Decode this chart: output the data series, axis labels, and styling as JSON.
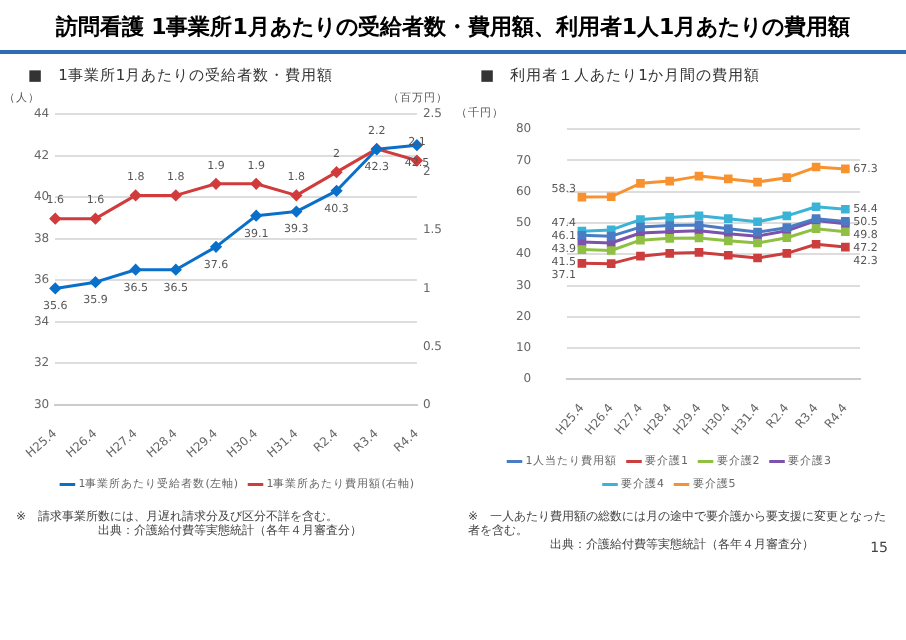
{
  "chart_data": [
    {
      "type": "line",
      "title": "訪問看護 1事業所1月あたりの受給者数・費用額、利用者1人1月あたりの費用額",
      "subtitle": "■　1事業所1月あたりの受給者数・費用額",
      "ylabel": "（人）",
      "y2label": "（百万円）",
      "categories": [
        "H25.4",
        "H26.4",
        "H27.4",
        "H28.4",
        "H29.4",
        "H30.4",
        "H31.4",
        "R2.4",
        "R3.4",
        "R4.4"
      ],
      "series": [
        {
          "name": "1事業所あたり受給者数(左軸)",
          "color": "#0a6fc9",
          "values": [
            35.6,
            35.9,
            36.5,
            36.5,
            37.6,
            39.1,
            39.3,
            40.3,
            42.3,
            42.5
          ]
        },
        {
          "name": "1事業所あたり費用額(右軸)",
          "color": "#d13b3b",
          "axis": "y2",
          "values": [
            1.6,
            1.6,
            1.8,
            1.8,
            1.9,
            1.9,
            1.8,
            2,
            2.2,
            2.1
          ]
        }
      ],
      "ylim": [
        30,
        44
      ],
      "yticks": [
        30,
        32,
        34,
        36,
        38,
        40,
        42,
        44
      ],
      "y2lim": [
        0,
        2.5
      ],
      "y2ticks": [
        0,
        0.5,
        1,
        1.5,
        2,
        2.5
      ],
      "grid": "y",
      "legend": "bottom",
      "marker": "diamond",
      "data_labels": true,
      "annotations": [
        "※　請求事業所数には、月遅れ請求分及び区分不詳を含む。",
        "出典：介護給付費等実態統計（各年４月審査分）"
      ]
    },
    {
      "type": "line",
      "title": "■　利用者１人あたり1か月間の費用額",
      "ylabel": "（千円）",
      "categories": [
        "H25.4",
        "H26.4",
        "H27.4",
        "H28.4",
        "H29.4",
        "H30.4",
        "H31.4",
        "R2.4",
        "R3.4",
        "R4.4"
      ],
      "series": [
        {
          "name": "1人当たり費用額",
          "color": "#4a7cc4",
          "values": [
            46.1,
            45.8,
            48.7,
            49.2,
            49.4,
            48.2,
            47.1,
            48.5,
            51.4,
            50.5
          ],
          "value_labels": [
            "46.1",
            null,
            null,
            null,
            null,
            null,
            null,
            null,
            null,
            "50.5"
          ]
        },
        {
          "name": "要介護1",
          "color": "#cc3d3d",
          "values": [
            37.1,
            37.0,
            39.4,
            40.3,
            40.6,
            39.7,
            38.8,
            40.3,
            43.2,
            42.3
          ],
          "value_labels": [
            "37.1",
            null,
            null,
            null,
            null,
            null,
            null,
            null,
            null,
            "42.3"
          ]
        },
        {
          "name": "要介護2",
          "color": "#8fc043",
          "values": [
            41.5,
            41.2,
            44.5,
            45.1,
            45.2,
            44.3,
            43.6,
            45.3,
            48.2,
            47.2
          ],
          "value_labels": [
            "41.5",
            null,
            null,
            null,
            null,
            null,
            null,
            null,
            null,
            "47.2"
          ]
        },
        {
          "name": "要介護3",
          "color": "#7d52ab",
          "values": [
            43.9,
            43.6,
            46.8,
            47.2,
            47.5,
            46.6,
            45.8,
            47.5,
            50.8,
            49.8
          ],
          "value_labels": [
            "43.9",
            null,
            null,
            null,
            null,
            null,
            null,
            null,
            null,
            "49.8"
          ]
        },
        {
          "name": "要介護4",
          "color": "#3ab3d6",
          "values": [
            47.4,
            47.8,
            51.1,
            51.8,
            52.3,
            51.4,
            50.4,
            52.3,
            55.2,
            54.4
          ],
          "value_labels": [
            "47.4",
            null,
            null,
            null,
            null,
            null,
            null,
            null,
            null,
            "54.4"
          ]
        },
        {
          "name": "要介護5",
          "color": "#f7922e",
          "values": [
            58.3,
            58.4,
            62.7,
            63.4,
            65.0,
            64.1,
            63.1,
            64.5,
            67.9,
            67.3
          ],
          "value_labels": [
            "58.3",
            null,
            null,
            null,
            null,
            null,
            null,
            null,
            null,
            "67.3"
          ]
        }
      ],
      "ylim": [
        0,
        80
      ],
      "yticks": [
        0,
        10,
        20,
        30,
        40,
        50,
        60,
        70,
        80
      ],
      "grid": "y",
      "legend": "bottom",
      "marker": "square",
      "annotations": [
        "※　一人あたり費用額の総数には月の途中で要介護から要支援に変更となった者を含む。",
        "出典：介護給付費等実態統計（各年４月審査分）",
        "15"
      ]
    }
  ]
}
